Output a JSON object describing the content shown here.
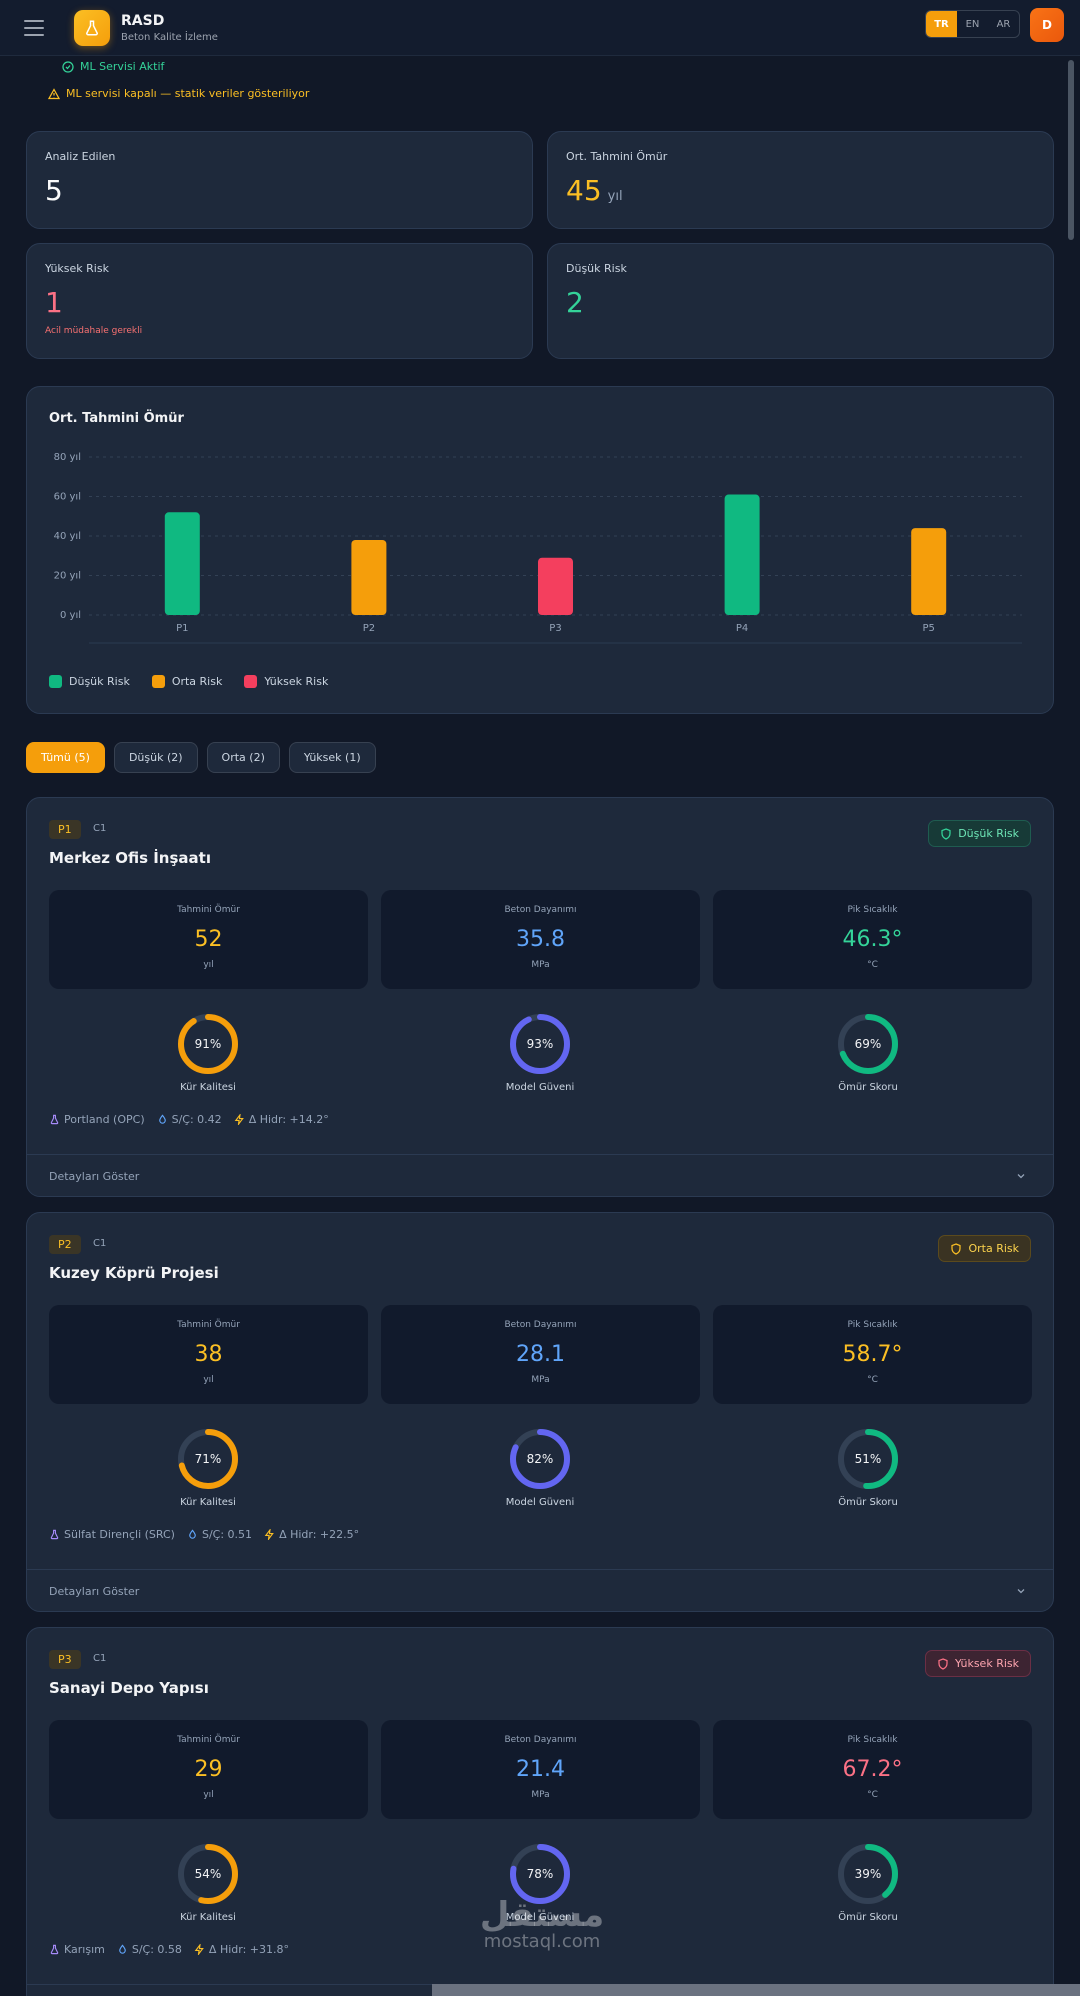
{
  "header": {
    "title": "RASD",
    "subtitle": "Beton Kalite İzleme",
    "langs": [
      "TR",
      "EN",
      "AR"
    ],
    "active_lang": "TR",
    "avatar": "D"
  },
  "status": {
    "ok": "ML Servisi Aktif",
    "warn": "ML servisi kapalı — statik veriler gösteriliyor"
  },
  "stats": {
    "analyzed_label": "Analiz Edilen",
    "analyzed_value": "5",
    "life_label": "Ort. Tahmini Ömür",
    "life_value": "45",
    "life_unit": "yıl",
    "high_label": "Yüksek Risk",
    "high_value": "1",
    "high_note": "Acil müdahale gerekli",
    "low_label": "Düşük Risk",
    "low_value": "2"
  },
  "chart_data": {
    "type": "bar",
    "title": "Ort. Tahmini Ömür",
    "categories": [
      "P1",
      "P2",
      "P3",
      "P4",
      "P5"
    ],
    "values": [
      52,
      38,
      29,
      61,
      44
    ],
    "risk": [
      "Düşük",
      "Orta",
      "Yüksek",
      "Düşük",
      "Orta"
    ],
    "yticks": [
      "0 yıl",
      "20 yıl",
      "40 yıl",
      "60 yıl",
      "80 yıl"
    ],
    "ylim": [
      0,
      80
    ],
    "legend": [
      {
        "label": "Düşük Risk",
        "color": "#10b981"
      },
      {
        "label": "Orta Risk",
        "color": "#f59e0b"
      },
      {
        "label": "Yüksek Risk",
        "color": "#f43f5e"
      }
    ],
    "legend_position": "bottom-left",
    "grid": true
  },
  "filters": [
    "Tümü (5)",
    "Düşük (2)",
    "Orta (2)",
    "Yüksek (1)"
  ],
  "labels": {
    "life": "Tahmini Ömür",
    "strength": "Beton Dayanımı",
    "temp": "Pik Sıcaklık",
    "life_unit": "yıl",
    "strength_unit": "MPa",
    "temp_unit": "°C",
    "cure": "Kür Kalitesi",
    "model": "Model Güveni",
    "score": "Ömür Skoru",
    "details": "Detayları Göster"
  },
  "projects": [
    {
      "code": "P1",
      "cls": "C1",
      "name": "Merkez Ofis İnşaatı",
      "risk": "Düşük Risk",
      "life": "52",
      "strength": "35.8",
      "temp": "46.3°",
      "cure": "91%",
      "cure_v": 0.91,
      "model": "93%",
      "model_v": 0.93,
      "score": "69%",
      "score_v": 0.69,
      "cement": "Portland (OPC)",
      "wc": "S/Ç: 0.42",
      "hydr": "Δ Hidr: +14.2°"
    },
    {
      "code": "P2",
      "cls": "C1",
      "name": "Kuzey Köprü Projesi",
      "risk": "Orta Risk",
      "life": "38",
      "strength": "28.1",
      "temp": "58.7°",
      "cure": "71%",
      "cure_v": 0.71,
      "model": "82%",
      "model_v": 0.82,
      "score": "51%",
      "score_v": 0.51,
      "cement": "Sülfat Dirençli (SRC)",
      "wc": "S/Ç: 0.51",
      "hydr": "Δ Hidr: +22.5°"
    },
    {
      "code": "P3",
      "cls": "C1",
      "name": "Sanayi Depo Yapısı",
      "risk": "Yüksek Risk",
      "life": "29",
      "strength": "21.4",
      "temp": "67.2°",
      "cure": "54%",
      "cure_v": 0.54,
      "model": "78%",
      "model_v": 0.78,
      "score": "39%",
      "score_v": 0.39,
      "cement": "Karışım",
      "wc": "S/Ç: 0.58",
      "hydr": "Δ Hidr: +31.8°"
    }
  ],
  "colors": {
    "low": "#10b981",
    "mid": "#f59e0b",
    "high": "#f43f5e",
    "strength": "#60a5fa",
    "ring_model": "#6366f1"
  },
  "watermark": {
    "ar": "مستقل",
    "en": "mostaql.com"
  }
}
